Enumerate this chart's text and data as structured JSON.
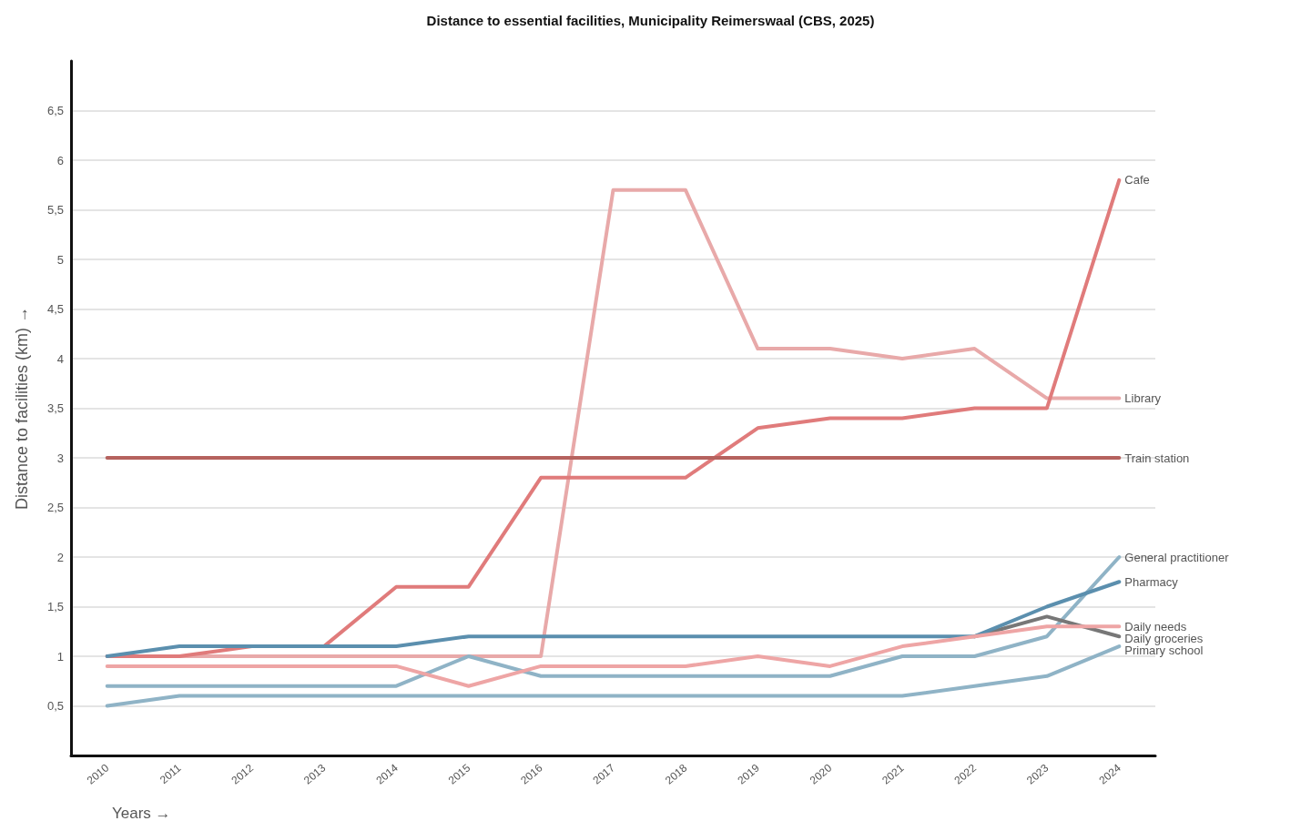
{
  "chart_data": {
    "type": "line",
    "title": "Distance to essential facilities, Municipality Reimerswaal (CBS, 2025)",
    "xlabel": "Years →",
    "ylabel": "Distance to facilities (km) →",
    "categories": [
      "2010",
      "2011",
      "2012",
      "2013",
      "2014",
      "2015",
      "2016",
      "2017",
      "2018",
      "2019",
      "2020",
      "2021",
      "2022",
      "2023",
      "2024"
    ],
    "series": [
      {
        "name": "Library",
        "color": "#e8a9a9",
        "values": [
          1.0,
          1.0,
          1.0,
          1.0,
          1.0,
          1.0,
          1.0,
          5.7,
          5.7,
          4.1,
          4.1,
          4.0,
          4.1,
          3.6,
          3.6
        ]
      },
      {
        "name": "Cafe",
        "color": "#e07b7b",
        "values": [
          1.0,
          1.0,
          1.1,
          1.1,
          1.7,
          1.7,
          2.8,
          2.8,
          2.8,
          3.3,
          3.4,
          3.4,
          3.5,
          3.5,
          5.8
        ]
      },
      {
        "name": "Train station",
        "color": "#b5625e",
        "values": [
          3,
          3,
          3,
          3,
          3,
          3,
          3,
          3,
          3,
          3,
          3,
          3,
          3,
          3,
          3
        ]
      },
      {
        "name": "General practitioner",
        "color": "#8fb3c6",
        "values": [
          0.7,
          0.7,
          0.7,
          0.7,
          0.7,
          1.0,
          0.8,
          0.8,
          0.8,
          0.8,
          0.8,
          1.0,
          1.0,
          1.2,
          2.0
        ]
      },
      {
        "name": "Daily groceries",
        "color": "#777777",
        "values": [
          null,
          null,
          null,
          null,
          null,
          null,
          null,
          null,
          null,
          null,
          null,
          null,
          1.2,
          1.4,
          1.2
        ]
      },
      {
        "name": "Pharmacy",
        "color": "#5b8fae",
        "values": [
          1.0,
          1.1,
          1.1,
          1.1,
          1.1,
          1.2,
          1.2,
          1.2,
          1.2,
          1.2,
          1.2,
          1.2,
          1.2,
          1.5,
          1.75
        ]
      },
      {
        "name": "Daily needs",
        "color": "#eea5a5",
        "values": [
          0.9,
          0.9,
          0.9,
          0.9,
          0.9,
          0.7,
          0.9,
          0.9,
          0.9,
          1.0,
          0.9,
          1.1,
          1.2,
          1.3,
          1.3
        ]
      },
      {
        "name": "Primary school",
        "color": "#8fb3c6",
        "values": [
          0.5,
          0.6,
          0.6,
          0.6,
          0.6,
          0.6,
          0.6,
          0.6,
          0.6,
          0.6,
          0.6,
          0.6,
          0.7,
          0.8,
          1.1
        ]
      }
    ],
    "ylim": [
      0,
      7
    ],
    "yticks": [
      {
        "value": 0.5,
        "label": "0,5"
      },
      1,
      {
        "value": 1.5,
        "label": "1,5"
      },
      2,
      {
        "value": 2.5,
        "label": "2,5"
      },
      3,
      {
        "value": 3.5,
        "label": "3,5"
      },
      4,
      {
        "value": 4.5,
        "label": "4,5"
      },
      5,
      {
        "value": 5.5,
        "label": "5,5"
      },
      6,
      {
        "value": 6.5,
        "label": "6,5"
      }
    ],
    "grid": "y",
    "legend": false,
    "marker": "none",
    "line_style": "solid"
  }
}
